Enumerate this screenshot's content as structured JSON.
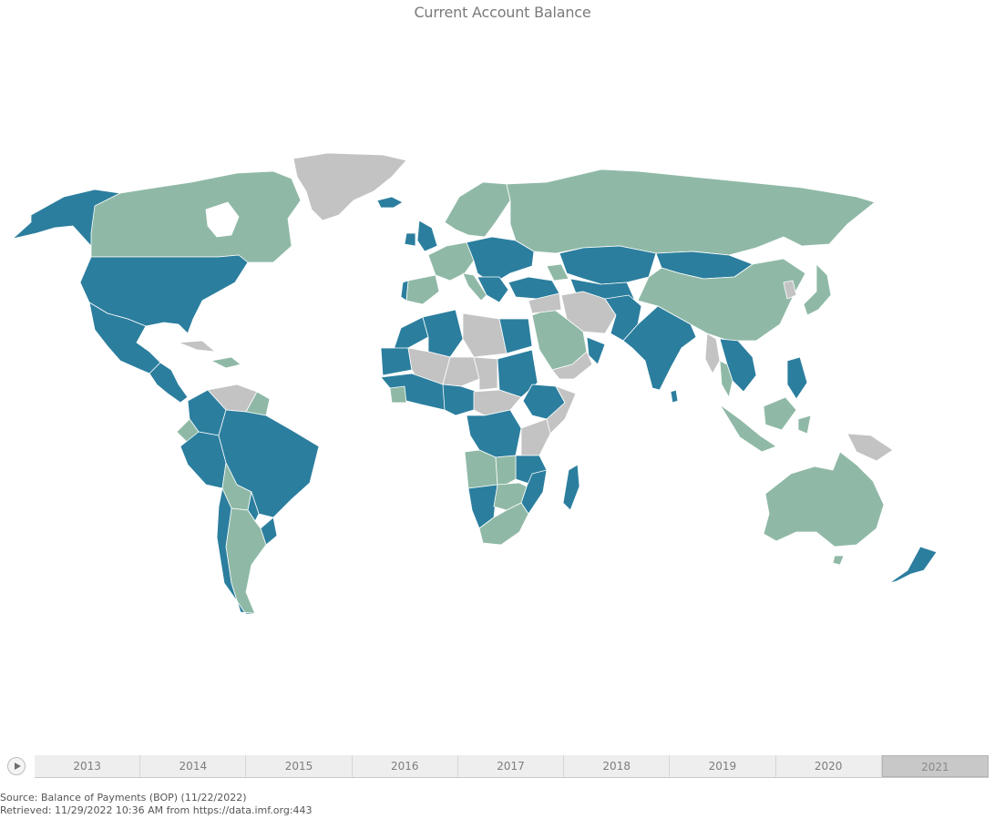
{
  "title": "Current Account Balance",
  "legend_colors": {
    "surplus": "#2b7e9e",
    "deficit": "#8fb9a6",
    "no_data": "#c3c3c3"
  },
  "timeline": {
    "years": [
      "2013",
      "2014",
      "2015",
      "2016",
      "2017",
      "2018",
      "2019",
      "2020",
      "2021"
    ],
    "selected": "2021"
  },
  "source": {
    "line1": "Source: Balance of Payments (BOP) (11/22/2022)",
    "line2": "Retrieved: 11/29/2022 10:36 AM from https://data.imf.org:443"
  }
}
